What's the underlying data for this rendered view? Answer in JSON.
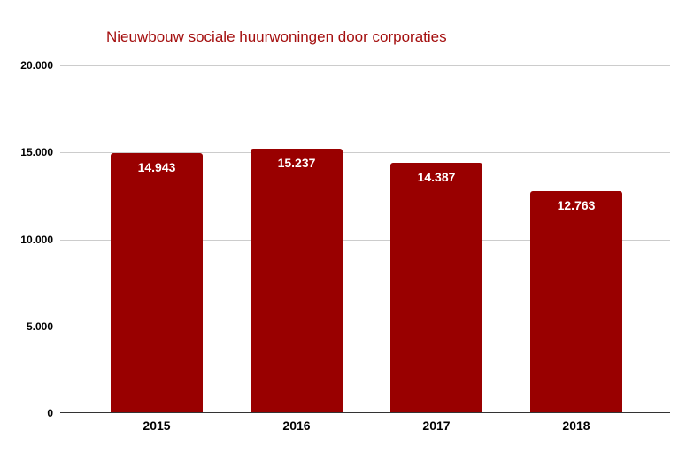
{
  "title": "Nieuwbouw sociale huurwoningen door corporaties",
  "colors": {
    "bar": "#990000",
    "title": "#a40f0f",
    "gridline": "#cccccc",
    "axis_line": "#333333",
    "tick_label": "#000000",
    "data_label": "#ffffff",
    "background": "#ffffff"
  },
  "chart_data": {
    "type": "bar",
    "title": "Nieuwbouw sociale huurwoningen door corporaties",
    "categories": [
      "2015",
      "2016",
      "2017",
      "2018"
    ],
    "values": [
      14943,
      15237,
      14387,
      12763
    ],
    "value_labels": [
      "14.943",
      "15.237",
      "14.387",
      "12.763"
    ],
    "xlabel": "",
    "ylabel": "",
    "ylim": [
      0,
      20000
    ],
    "yticks": [
      {
        "value": 20000,
        "label": "20.000"
      },
      {
        "value": 15000,
        "label": "15.000"
      },
      {
        "value": 10000,
        "label": "10.000"
      },
      {
        "value": 5000,
        "label": "5.000"
      },
      {
        "value": 0,
        "label": "0"
      }
    ],
    "grid": true,
    "legend": "none",
    "data_labels_position": "inside-top"
  }
}
